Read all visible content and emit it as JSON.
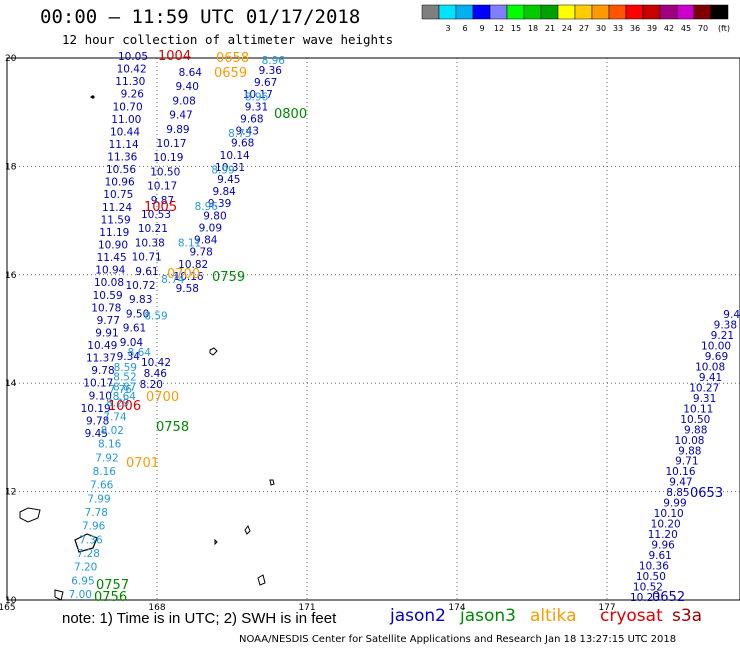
{
  "header": {
    "title": "00:00 – 11:59 UTC 01/17/2018",
    "subtitle": "12 hour collection of altimeter wave heights"
  },
  "colorbar": {
    "colors": [
      "#7f7f7f",
      "#00e5ff",
      "#00b0f0",
      "#0000ff",
      "#7f7fff",
      "#00ff00",
      "#00cc00",
      "#00a000",
      "#ffff00",
      "#ffcc00",
      "#ff9900",
      "#ff5500",
      "#ff0000",
      "#c80000",
      "#a00080",
      "#cc00cc",
      "#800000",
      "#000000"
    ],
    "labels": [
      "3",
      "6",
      "9",
      "12",
      "15",
      "18",
      "21",
      "24",
      "27",
      "30",
      "33",
      "36",
      "39",
      "42",
      "45",
      "70"
    ],
    "unit": "(ft)"
  },
  "axes": {
    "lat_labels": [
      "20",
      "18",
      "16",
      "14",
      "12",
      "10"
    ],
    "lon_labels": [
      "165",
      "168",
      "171",
      "174",
      "177"
    ],
    "lat_range": [
      10,
      20
    ],
    "lon_range": [
      165,
      178.5
    ],
    "grid": true
  },
  "satellite_legend": [
    {
      "name": "jason2",
      "color": "#0000cc"
    },
    {
      "name": "jason3",
      "color": "#008800"
    },
    {
      "name": "altika",
      "color": "#ff9900"
    },
    {
      "name": "cryosat",
      "color": "#dd0000"
    },
    {
      "name": "s3a",
      "color": "#990000"
    }
  ],
  "note": "note: 1) Time is in UTC; 2) SWH is in feet",
  "credit": "NOAA/NESDIS Center for Satellite Applications and Research    Jan 18 13:27:15 UTC 2018",
  "tracks": {
    "track_a": {
      "color": "#0000bb",
      "values": [
        "10.05",
        "10.42",
        "11.30",
        "9.26",
        "10.70",
        "11.00",
        "10.44",
        "11.14",
        "11.36",
        "10.56",
        "10.96",
        "10.75",
        "11.24",
        "11.59",
        "11.19",
        "10.90",
        "11.45",
        "10.94",
        "10.08",
        "10.59",
        "10.78",
        "9.77",
        "9.91",
        "10.49",
        "11.37",
        "9.78",
        "10.17",
        "9.10",
        "10.19",
        "9.78",
        "9.45"
      ]
    },
    "track_b": {
      "color": "#0000bb",
      "values": [
        "8.64",
        "9.40",
        "9.08",
        "9.47",
        "9.89",
        "10.17",
        "10.19",
        "10.50",
        "10.17",
        "9.87",
        "10.53",
        "10.21",
        "10.38",
        "10.71",
        "9.61",
        "10.72",
        "9.83",
        "9.50",
        "9.61",
        "9.04",
        "9.34"
      ]
    },
    "track_b_light": {
      "color": "#2299dd",
      "values": [
        "8.59",
        "8.52",
        "8.87",
        "8.64"
      ]
    },
    "track_c": {
      "color": "#0000bb",
      "values": [
        "9.36",
        "9.67",
        "10.17",
        "9.31",
        "9.68",
        "9.43",
        "9.68",
        "10.14",
        "10.31",
        "9.45",
        "9.84",
        "9.39",
        "9.80",
        "9.09",
        "9.84",
        "9.78",
        "10.82",
        "10.16",
        "9.58"
      ]
    },
    "track_c_light": {
      "color": "#2299dd",
      "values": [
        "8.96",
        "8.96",
        "8.73",
        "8.99",
        "8.96",
        "8.11",
        "8.74",
        "8.59",
        "8.64"
      ]
    },
    "track_c_low": {
      "color": "#0000bb",
      "values": [
        "10.42",
        "8.46",
        "8.20"
      ]
    },
    "track_d": {
      "color": "#0000bb",
      "values": [
        "9.4",
        "9.38",
        "9.21",
        "10.00",
        "9.69",
        "10.08",
        "9.41",
        "10.27",
        "9.31",
        "10.11",
        "10.50",
        "9.88",
        "10.08",
        "9.88",
        "9.71",
        "10.16",
        "9.47",
        "8.85",
        "9.99",
        "10.10",
        "10.20",
        "11.20",
        "9.96",
        "9.61",
        "10.36",
        "10.50",
        "10.52",
        "10.23"
      ]
    },
    "track_e_light": {
      "color": "#2299dd",
      "values": [
        "7.76",
        "8.29",
        "7.74",
        "8.02",
        "8.16",
        "7.92",
        "8.16",
        "7.66",
        "7.99",
        "7.78",
        "7.96",
        "7.36",
        "7.28",
        "7.20",
        "6.95",
        "7.00"
      ]
    }
  },
  "time_labels": [
    {
      "text": "1004",
      "color": "#dd0000"
    },
    {
      "text": "0658",
      "color": "#ff9900"
    },
    {
      "text": "0659",
      "color": "#ff9900"
    },
    {
      "text": "0800",
      "color": "#008800"
    },
    {
      "text": "1005",
      "color": "#dd0000"
    },
    {
      "text": "0700",
      "color": "#ff9900"
    },
    {
      "text": "0759",
      "color": "#008800"
    },
    {
      "text": "0700",
      "color": "#ff9900"
    },
    {
      "text": "1006",
      "color": "#dd0000"
    },
    {
      "text": "0758",
      "color": "#008800"
    },
    {
      "text": "0701",
      "color": "#ff9900"
    },
    {
      "text": "0653",
      "color": "#0000bb"
    },
    {
      "text": "0757",
      "color": "#008800"
    },
    {
      "text": "0756",
      "color": "#008800"
    },
    {
      "text": "0652",
      "color": "#0000bb"
    }
  ]
}
